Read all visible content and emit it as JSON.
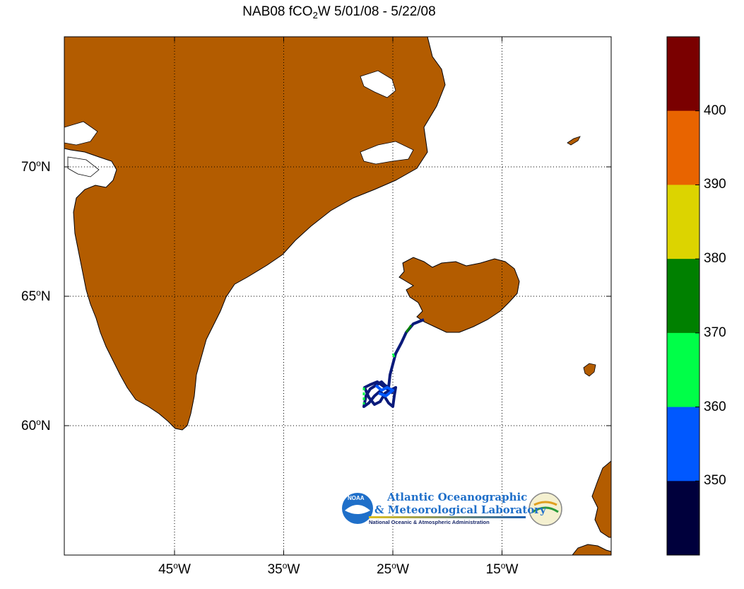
{
  "title": {
    "prefix": "NAB08 fCO",
    "subscript": "2",
    "suffix": "W 5/01/08 - 5/22/08"
  },
  "axes": {
    "lat_ticks": [
      {
        "value": 70,
        "num": "70",
        "unit": "o",
        "hemi": "N"
      },
      {
        "value": 65,
        "num": "65",
        "unit": "o",
        "hemi": "N"
      },
      {
        "value": 60,
        "num": "60",
        "unit": "o",
        "hemi": "N"
      }
    ],
    "lon_ticks": [
      {
        "value": -45,
        "num": "45",
        "unit": "o",
        "hemi": "W"
      },
      {
        "value": -35,
        "num": "35",
        "unit": "o",
        "hemi": "W"
      },
      {
        "value": -25,
        "num": "25",
        "unit": "o",
        "hemi": "W"
      },
      {
        "value": -15,
        "num": "15",
        "unit": "o",
        "hemi": "W"
      }
    ],
    "lon_range": [
      -55,
      -5
    ],
    "lat_range": [
      55,
      75
    ],
    "grid": "dotted"
  },
  "colorbar": {
    "labels": [
      "400",
      "390",
      "380",
      "370",
      "360",
      "350"
    ],
    "bands": [
      {
        "color": "#7a0000"
      },
      {
        "color": "#e86400"
      },
      {
        "color": "#dcd400"
      },
      {
        "color": "#008000"
      },
      {
        "color": "#00ff48"
      },
      {
        "color": "#0058ff"
      },
      {
        "color": "#00003c"
      }
    ]
  },
  "colors": {
    "land": "#b35c00",
    "coast": "#000000",
    "ice": "#ffffff",
    "track_main": "#0a1a7a"
  },
  "logo": {
    "line1": "Atlantic Oceanographic",
    "line2": "& Meteorological Laboratory",
    "line3": "National Oceanic & Atmospheric Administration",
    "badge": "NOAA"
  }
}
